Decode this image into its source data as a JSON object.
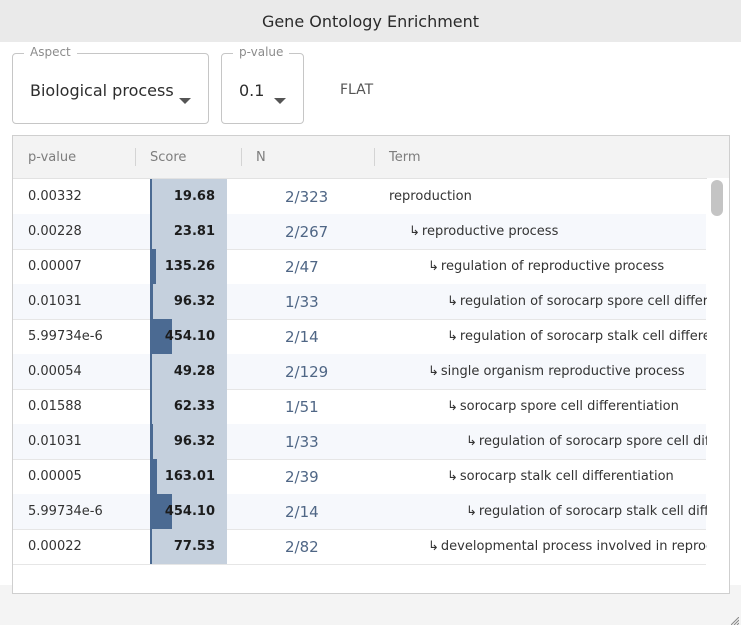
{
  "window": {
    "title": "Gene Ontology Enrichment"
  },
  "controls": {
    "aspect": {
      "legend": "Aspect",
      "value": "Biological process"
    },
    "pvalue": {
      "legend": "p-value",
      "value": "0.1"
    },
    "flat_label": "FLAT"
  },
  "table": {
    "headers": {
      "pvalue": "p-value",
      "score": "Score",
      "n": "N",
      "term": "Term"
    },
    "rows": [
      {
        "pvalue": "0.00332",
        "score": "19.68",
        "score_fraction": 0.0,
        "n": "2/323",
        "term": "reproduction",
        "depth": 0
      },
      {
        "pvalue": "0.00228",
        "score": "23.81",
        "score_fraction": 0.0,
        "n": "2/267",
        "term": "reproductive process",
        "depth": 1
      },
      {
        "pvalue": "0.00007",
        "score": "135.26",
        "score_fraction": 0.08,
        "n": "2/47",
        "term": "regulation of reproductive process",
        "depth": 2
      },
      {
        "pvalue": "0.01031",
        "score": "96.32",
        "score_fraction": 0.04,
        "n": "1/33",
        "term": "regulation of sorocarp spore cell differenti",
        "depth": 3
      },
      {
        "pvalue": "5.99734e-6",
        "score": "454.10",
        "score_fraction": 0.28,
        "n": "2/14",
        "term": "regulation of sorocarp stalk cell differentia",
        "depth": 3
      },
      {
        "pvalue": "0.00054",
        "score": "49.28",
        "score_fraction": 0.02,
        "n": "2/129",
        "term": "single organism reproductive process",
        "depth": 2
      },
      {
        "pvalue": "0.01588",
        "score": "62.33",
        "score_fraction": 0.03,
        "n": "1/51",
        "term": "sorocarp spore cell differentiation",
        "depth": 3
      },
      {
        "pvalue": "0.01031",
        "score": "96.32",
        "score_fraction": 0.04,
        "n": "1/33",
        "term": "regulation of sorocarp spore cell differe",
        "depth": 4
      },
      {
        "pvalue": "0.00005",
        "score": "163.01",
        "score_fraction": 0.09,
        "n": "2/39",
        "term": "sorocarp stalk cell differentiation",
        "depth": 3
      },
      {
        "pvalue": "5.99734e-6",
        "score": "454.10",
        "score_fraction": 0.28,
        "n": "2/14",
        "term": "regulation of sorocarp stalk cell differer",
        "depth": 4
      },
      {
        "pvalue": "0.00022",
        "score": "77.53",
        "score_fraction": 0.03,
        "n": "2/82",
        "term": "developmental process involved in reproducti",
        "depth": 2
      }
    ]
  },
  "icons": {
    "dropdown": "chevron-down-icon",
    "child_arrow": "child-arrow-icon",
    "resize": "resize-grip-icon"
  },
  "colors": {
    "score_bar": "#4b6a92",
    "score_bg": "#c5d0dd",
    "n_text": "#4f6685"
  }
}
